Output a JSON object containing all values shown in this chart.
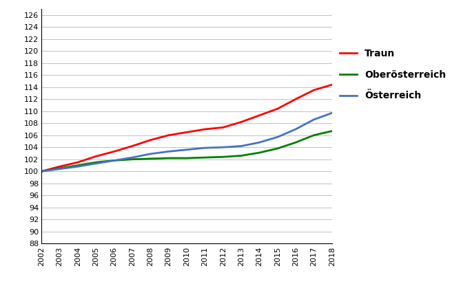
{
  "years": [
    2002,
    2003,
    2004,
    2005,
    2006,
    2007,
    2008,
    2009,
    2010,
    2011,
    2012,
    2013,
    2014,
    2015,
    2016,
    2017,
    2018
  ],
  "traun": [
    100.0,
    100.8,
    101.5,
    102.5,
    103.3,
    104.2,
    105.2,
    106.0,
    106.5,
    107.0,
    107.3,
    108.2,
    109.3,
    110.4,
    112.0,
    113.5,
    114.4
  ],
  "oberoesterreich": [
    100.0,
    100.5,
    101.0,
    101.5,
    101.8,
    102.0,
    102.1,
    102.2,
    102.2,
    102.3,
    102.4,
    102.6,
    103.1,
    103.8,
    104.8,
    106.0,
    106.7
  ],
  "oesterreich": [
    100.0,
    100.4,
    100.8,
    101.3,
    101.8,
    102.3,
    102.9,
    103.3,
    103.6,
    103.9,
    104.0,
    104.2,
    104.8,
    105.7,
    107.0,
    108.6,
    109.7
  ],
  "traun_color": "#FF0000",
  "oberoesterreich_color": "#008000",
  "oesterreich_color": "#4472C4",
  "traun_label": "Traun",
  "oberoesterreich_label": "Oberösterreich",
  "oesterreich_label": "Österreich",
  "ylim": [
    88,
    127
  ],
  "ytick_step": 2,
  "background_color": "#FFFFFF",
  "grid_color": "#C0C0C0",
  "line_width": 2.0,
  "legend_fontsize": 10,
  "tick_fontsize": 8
}
